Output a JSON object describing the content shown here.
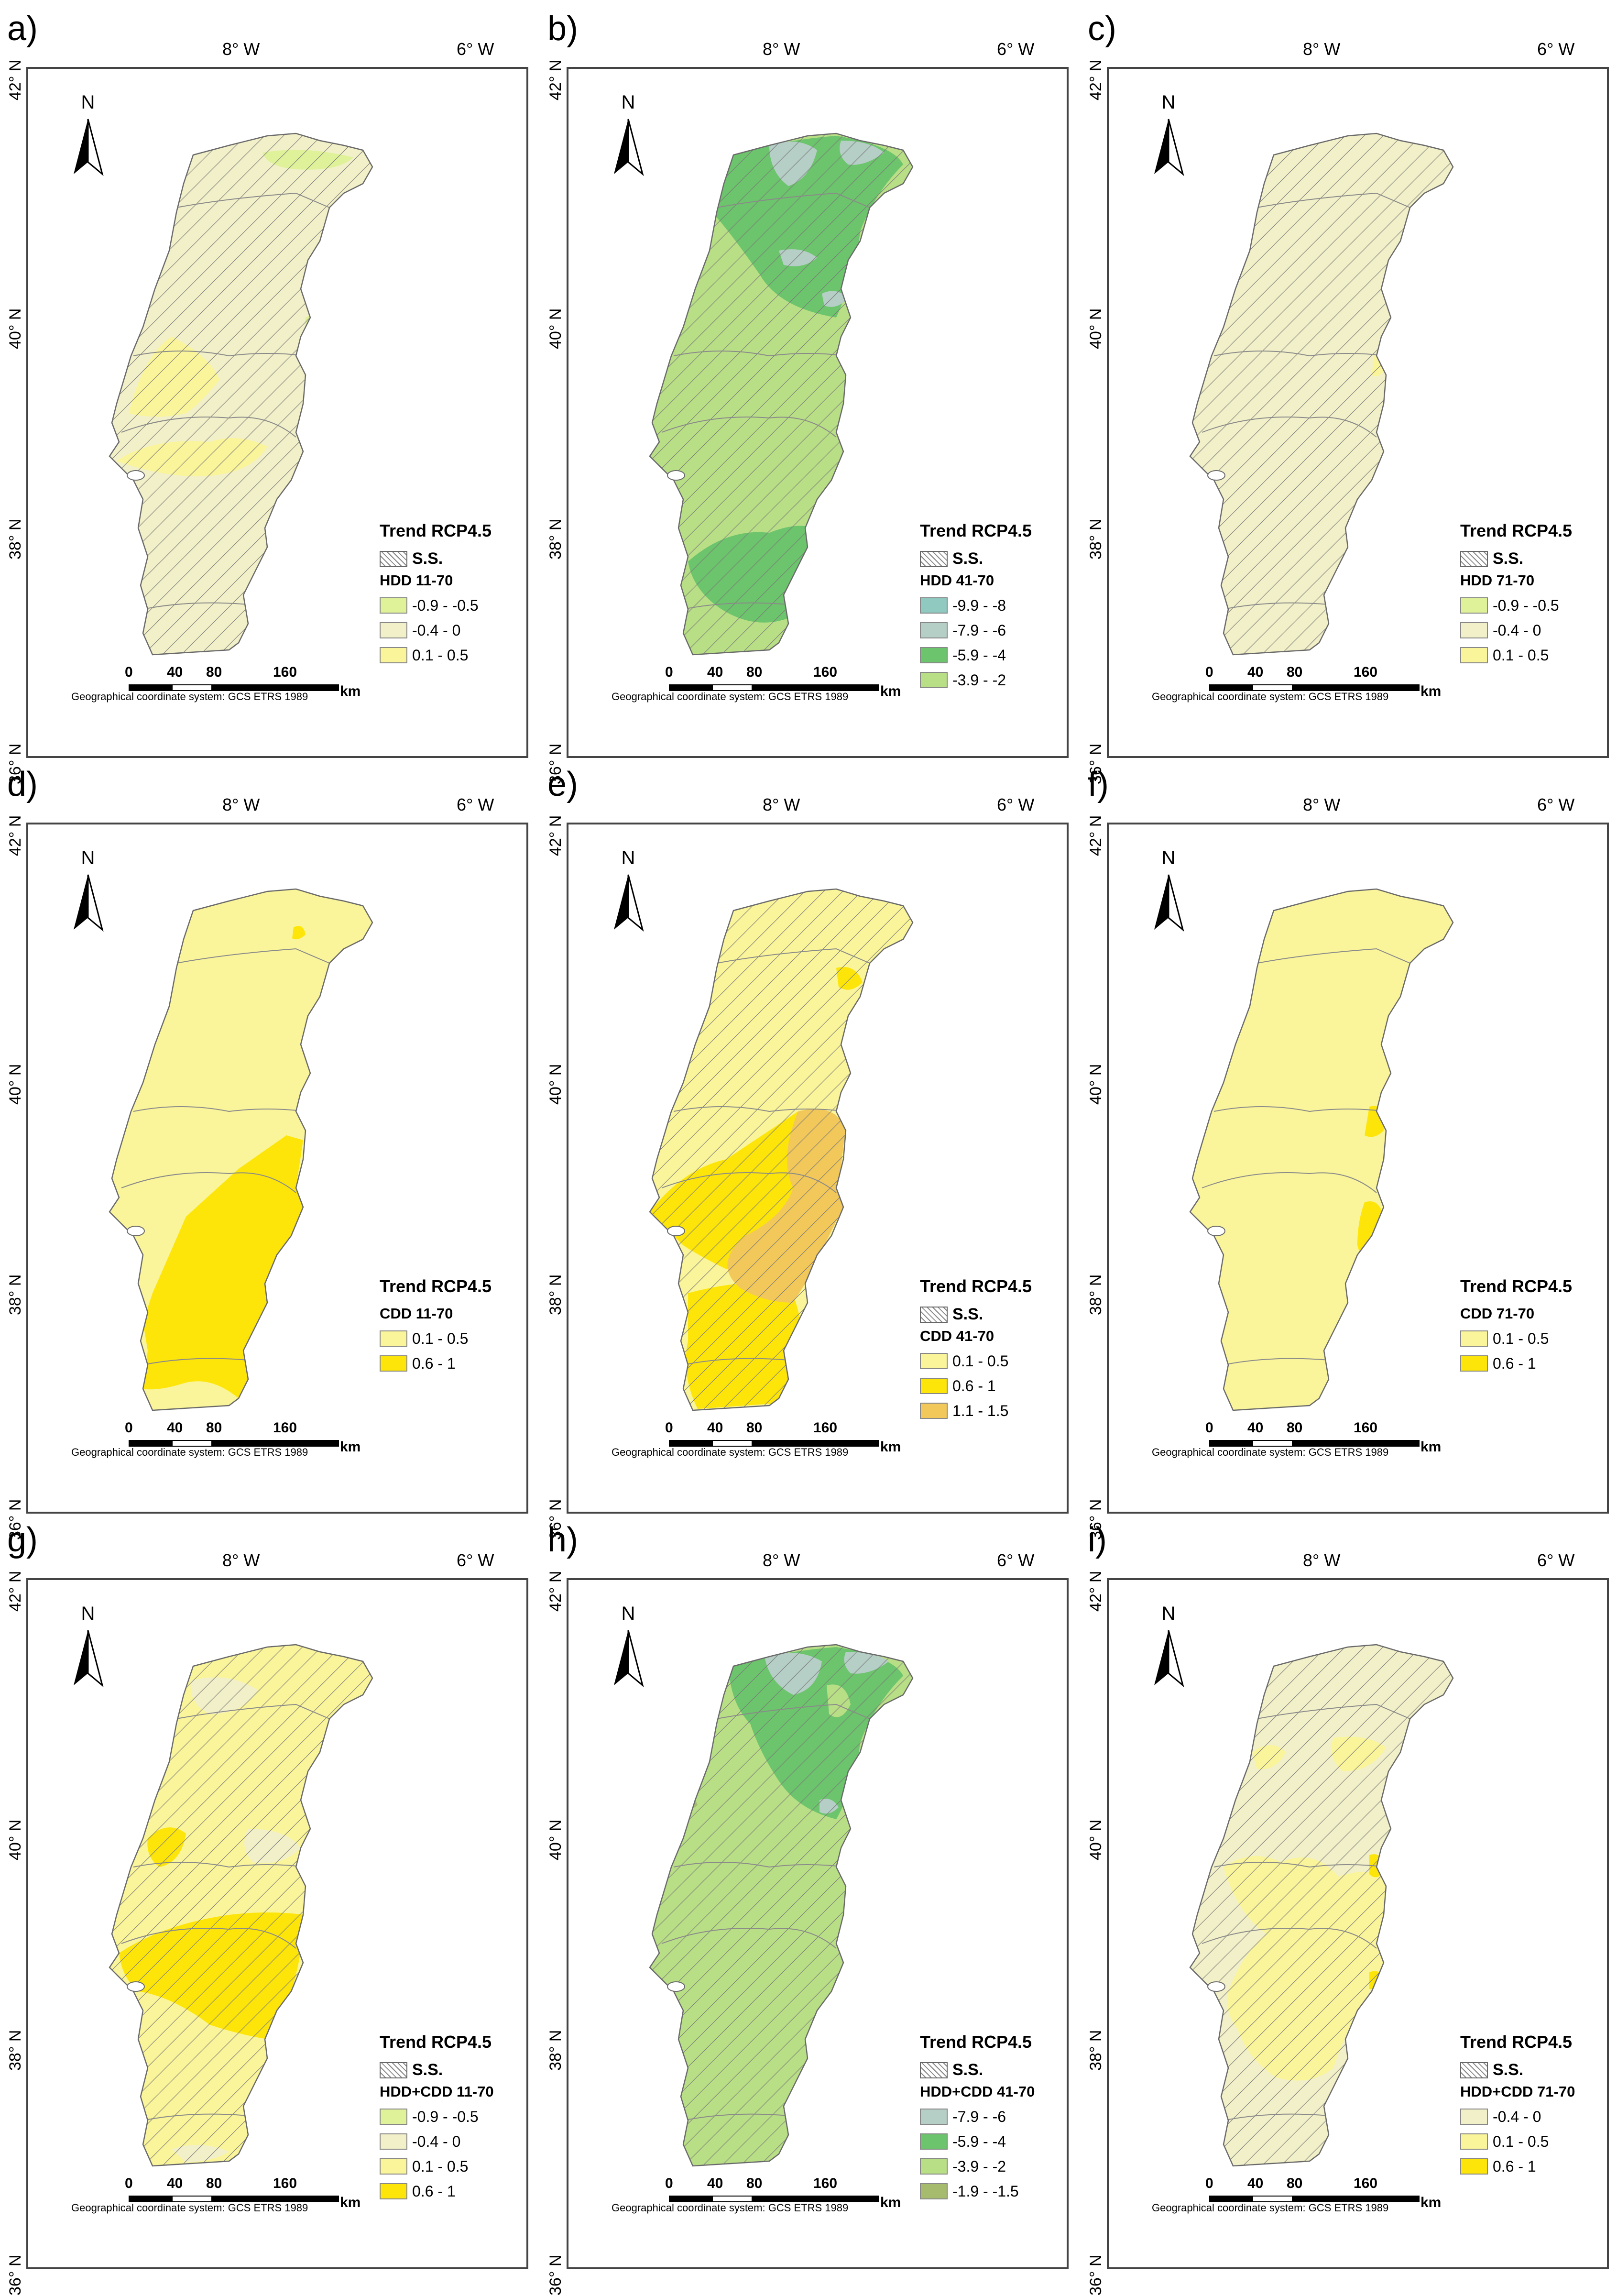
{
  "common": {
    "lon_labels": [
      "8° W",
      "6° W"
    ],
    "lat_labels": [
      "42° N",
      "40° N",
      "38° N",
      "36° N"
    ],
    "north": "N",
    "scale_numbers": [
      "0",
      "40",
      "80",
      "160"
    ],
    "scale_unit": "km",
    "gcs": "Geographical coordinate system: GCS ETRS 1989",
    "legend_title": "Trend RCP4.5",
    "ss_label": "S.S."
  },
  "colors": {
    "hdd_lightgreen": "#dff29a",
    "neutral": "#f2f0c8",
    "pale_yellow": "#faf59a",
    "yellow": "#fde50a",
    "orange": "#f3c85a",
    "teal": "#8fc9c0",
    "grayteal": "#b5cec6",
    "green": "#6cc46c",
    "lightgreen": "#b9df86",
    "olive": "#a6bb6e"
  },
  "panels": [
    {
      "letter": "a)",
      "variable": "HDD 11-70",
      "ss": true,
      "classes": [
        {
          "label": "-0.9 - -0.5",
          "color": "#dff29a"
        },
        {
          "label": "-0.4 - 0",
          "color": "#f2f0c8"
        },
        {
          "label": "0.1 - 0.5",
          "color": "#faf59a"
        }
      ]
    },
    {
      "letter": "b)",
      "variable": "HDD 41-70",
      "ss": true,
      "classes": [
        {
          "label": "-9.9 - -8",
          "color": "#8fc9c0"
        },
        {
          "label": "-7.9 - -6",
          "color": "#b5cec6"
        },
        {
          "label": "-5.9 - -4",
          "color": "#6cc46c"
        },
        {
          "label": "-3.9 - -2",
          "color": "#b9df86"
        }
      ]
    },
    {
      "letter": "c)",
      "variable": "HDD 71-70",
      "ss": true,
      "classes": [
        {
          "label": "-0.9 - -0.5",
          "color": "#dff29a"
        },
        {
          "label": "-0.4 - 0",
          "color": "#f2f0c8"
        },
        {
          "label": "0.1 - 0.5",
          "color": "#faf59a"
        }
      ]
    },
    {
      "letter": "d)",
      "variable": "CDD 11-70",
      "ss": false,
      "classes": [
        {
          "label": "0.1 - 0.5",
          "color": "#faf59a"
        },
        {
          "label": "0.6 - 1",
          "color": "#fde50a"
        }
      ]
    },
    {
      "letter": "e)",
      "variable": "CDD 41-70",
      "ss": true,
      "classes": [
        {
          "label": "0.1 - 0.5",
          "color": "#faf59a"
        },
        {
          "label": "0.6 - 1",
          "color": "#fde50a"
        },
        {
          "label": "1.1 - 1.5",
          "color": "#f3c85a"
        }
      ]
    },
    {
      "letter": "f)",
      "variable": "CDD 71-70",
      "ss": false,
      "classes": [
        {
          "label": "0.1 - 0.5",
          "color": "#faf59a"
        },
        {
          "label": "0.6 - 1",
          "color": "#fde50a"
        }
      ]
    },
    {
      "letter": "g)",
      "variable": "HDD+CDD 11-70",
      "ss": true,
      "classes": [
        {
          "label": "-0.9 - -0.5",
          "color": "#dff29a"
        },
        {
          "label": "-0.4 - 0",
          "color": "#f2f0c8"
        },
        {
          "label": "0.1 - 0.5",
          "color": "#faf59a"
        },
        {
          "label": "0.6 - 1",
          "color": "#fde50a"
        }
      ]
    },
    {
      "letter": "h)",
      "variable": "HDD+CDD 41-70",
      "ss": true,
      "classes": [
        {
          "label": "-7.9 - -6",
          "color": "#b5cec6"
        },
        {
          "label": "-5.9 - -4",
          "color": "#6cc46c"
        },
        {
          "label": "-3.9 - -2",
          "color": "#b9df86"
        },
        {
          "label": "-1.9 - -1.5",
          "color": "#a6bb6e"
        }
      ]
    },
    {
      "letter": "i)",
      "variable": "HDD+CDD 71-70",
      "ss": true,
      "classes": [
        {
          "label": "-0.4 - 0",
          "color": "#f2f0c8"
        },
        {
          "label": "0.1 - 0.5",
          "color": "#faf59a"
        },
        {
          "label": "0.6 - 1",
          "color": "#fde50a"
        }
      ]
    }
  ]
}
